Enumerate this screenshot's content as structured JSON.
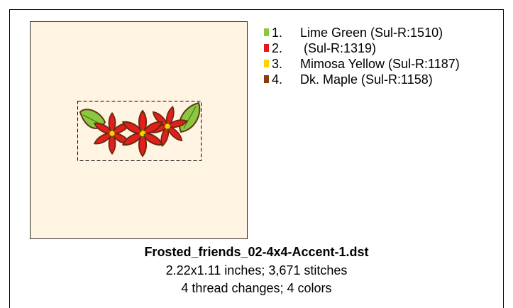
{
  "design": {
    "filename": "Frosted_friends_02-4x4-Accent-1.dst",
    "dimensions_line": "2.22x1.11 inches; 3,671 stitches",
    "changes_line": "4 thread changes; 4 colors"
  },
  "colors": {
    "preview_background": "#fff3e1",
    "selection_border": "#000000"
  },
  "legend": {
    "items": [
      {
        "num": "1.",
        "name": "Lime Green (Sul-R:1510)",
        "color": "#8dc63f"
      },
      {
        "num": "2.",
        "name": " (Sul-R:1319)",
        "color": "#e8141b"
      },
      {
        "num": "3.",
        "name": "Mimosa Yellow (Sul-R:1187)",
        "color": "#ffd200"
      },
      {
        "num": "4.",
        "name": "Dk. Maple (Sul-R:1158)",
        "color": "#8b3a12"
      }
    ]
  }
}
